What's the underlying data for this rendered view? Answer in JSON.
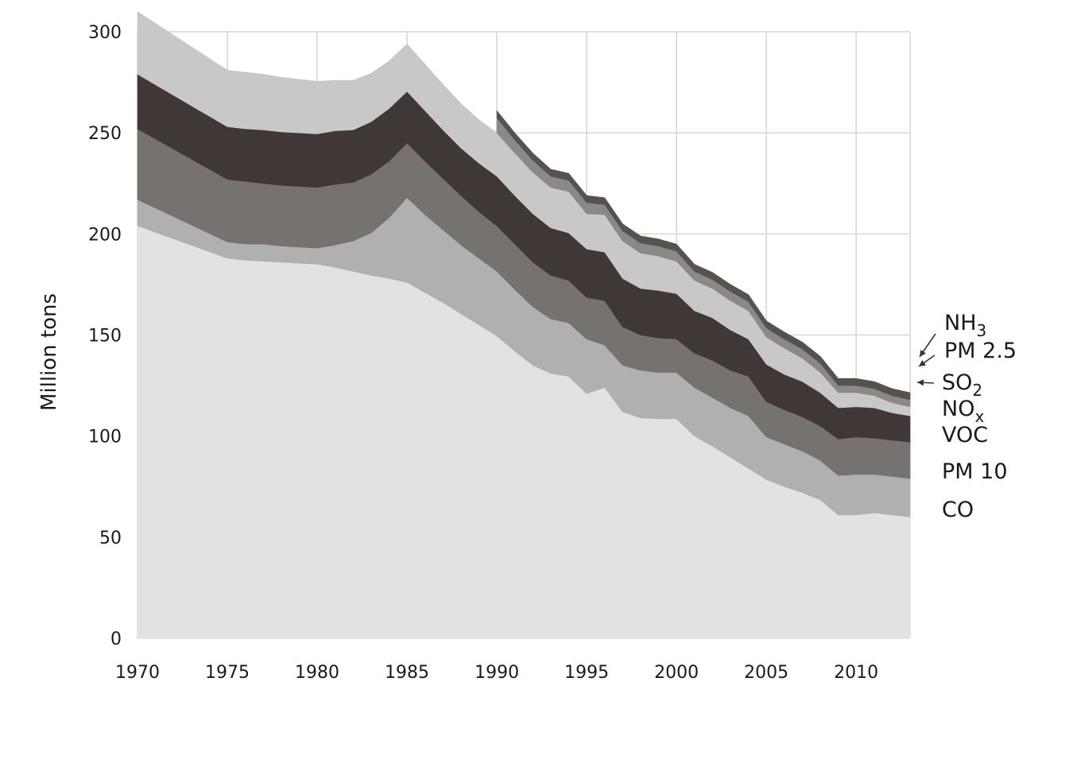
{
  "chart_data": {
    "type": "area",
    "stacked": true,
    "ylabel": "Million tons",
    "xlabel": "",
    "ylim": [
      0,
      300
    ],
    "xlim": [
      1970,
      2013
    ],
    "yticks": [
      0,
      50,
      100,
      150,
      200,
      250,
      300
    ],
    "xticks": [
      1970,
      1975,
      1980,
      1985,
      1990,
      1995,
      2000,
      2005,
      2010
    ],
    "grid": true,
    "legend_placement": "right, inline labels",
    "x": [
      1970,
      1975,
      1976,
      1977,
      1978,
      1979,
      1980,
      1981,
      1982,
      1983,
      1984,
      1985,
      1986,
      1987,
      1988,
      1989,
      1990,
      1991,
      1992,
      1993,
      1994,
      1995,
      1996,
      1997,
      1998,
      1999,
      2000,
      2001,
      2002,
      2003,
      2004,
      2005,
      2006,
      2007,
      2008,
      2009,
      2010,
      2011,
      2012,
      2013
    ],
    "series": [
      {
        "name": "CO",
        "color": "#e2e2e1",
        "values": [
          204,
          188,
          187,
          186.5,
          186,
          185.5,
          185,
          183.5,
          181.5,
          179.5,
          178,
          176,
          171,
          166,
          160.5,
          155,
          149.5,
          142,
          135,
          131,
          129.5,
          121,
          124,
          112,
          109,
          108.5,
          108.5,
          100,
          95,
          89.5,
          84,
          78.5,
          75,
          72,
          68.5,
          61,
          61,
          62,
          61,
          60
        ]
      },
      {
        "name": "PM 10",
        "color": "#b0b0ae",
        "values": [
          13,
          8,
          8,
          8.5,
          8,
          8,
          8,
          11,
          15,
          21,
          30,
          42,
          38.5,
          36,
          34,
          33,
          32,
          30.5,
          29,
          27,
          26.5,
          27,
          21,
          23,
          23.5,
          23,
          23,
          24,
          24,
          24.5,
          26,
          21,
          21,
          20.5,
          19.5,
          19.5,
          20,
          19,
          19,
          19
        ]
      },
      {
        "name": "VOC",
        "color": "#75726f",
        "values": [
          35,
          31,
          31,
          30,
          30,
          30,
          30,
          30,
          29,
          29,
          28,
          27,
          26.5,
          25.5,
          24.5,
          23,
          22.5,
          22.5,
          22,
          21.5,
          21,
          20.5,
          22,
          19,
          17.5,
          17,
          16.5,
          17,
          18.5,
          18.5,
          19.5,
          17.5,
          17,
          17,
          17,
          18,
          18.5,
          18,
          18,
          18
        ]
      },
      {
        "name": "NOx",
        "color": "#403837",
        "values": [
          27,
          26,
          26,
          26.5,
          26.5,
          26.5,
          26.5,
          26.5,
          26,
          26,
          26,
          25.5,
          25,
          24,
          23.5,
          24,
          24.5,
          24,
          24,
          23.5,
          23.5,
          24,
          24,
          24,
          23,
          23.5,
          22.5,
          21,
          21,
          20,
          18.5,
          18.5,
          17.5,
          17.5,
          16.5,
          15.5,
          15,
          15,
          13.5,
          13
        ]
      },
      {
        "name": "SO2",
        "color": "#c8c8c7",
        "values": [
          31,
          28,
          28,
          27.5,
          27,
          26.5,
          26,
          25,
          24.5,
          24,
          23.5,
          23.5,
          23,
          22.5,
          22,
          21.5,
          21.5,
          21,
          20.5,
          20,
          20.5,
          17.5,
          18.5,
          18.5,
          17.5,
          17,
          16,
          15,
          14.5,
          14.5,
          14,
          13.5,
          13,
          11.5,
          10,
          7.5,
          7,
          6,
          5,
          4.5
        ]
      },
      {
        "name": "PM 2.5",
        "color": "#8a8988",
        "values": [
          0,
          0,
          0,
          0,
          0,
          0,
          0,
          0,
          0,
          0,
          0,
          0,
          0,
          0,
          0,
          0,
          7.5,
          6.5,
          6,
          5.5,
          5.5,
          5.5,
          5,
          5,
          5,
          5,
          5,
          4.5,
          4.5,
          4.5,
          4.5,
          4.5,
          4.5,
          4.5,
          4.5,
          3.5,
          3.5,
          3.5,
          3.5,
          3.5
        ]
      },
      {
        "name": "NH3",
        "color": "#58524f",
        "values": [
          0,
          0,
          0,
          0,
          0,
          0,
          0,
          0,
          0,
          0,
          0,
          0,
          0,
          0,
          0,
          0,
          3.5,
          3.5,
          3.5,
          3.5,
          3.5,
          3.5,
          3.5,
          3.5,
          3.5,
          3.5,
          3.5,
          3.5,
          3.5,
          3.5,
          3.5,
          3.5,
          3.5,
          3.5,
          3.5,
          3.5,
          3.5,
          3.5,
          3.5,
          3.5
        ]
      }
    ],
    "legend": [
      {
        "base": "NH",
        "sub": "3"
      },
      {
        "base": "PM 2.5",
        "sub": ""
      },
      {
        "base": "SO",
        "sub": "2"
      },
      {
        "base": "NO",
        "sub": "x"
      },
      {
        "base": "VOC",
        "sub": ""
      },
      {
        "base": "PM 10",
        "sub": ""
      },
      {
        "base": "CO",
        "sub": ""
      }
    ],
    "grid_color": "#d6d6d6"
  }
}
